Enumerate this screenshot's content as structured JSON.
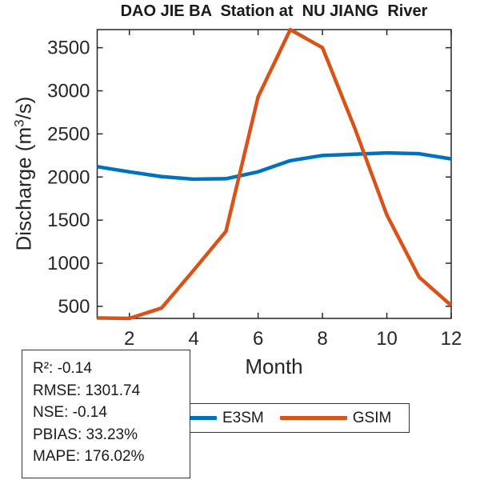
{
  "title": "DAO JIE BA  Station at  NU JIANG  River",
  "axes": {
    "xlabel": "Month",
    "ylabel_pre": "Discharge (m",
    "ylabel_sup": "3",
    "ylabel_post": "/s)",
    "tick_color": "#262626",
    "x_ticks": [
      2,
      4,
      6,
      8,
      10,
      12
    ],
    "y_ticks": [
      500,
      1000,
      1500,
      2000,
      2500,
      3000,
      3500
    ]
  },
  "legend": {
    "items": [
      {
        "label": "E3SM",
        "color": "#0072BD"
      },
      {
        "label": "GSIM",
        "color": "#D95319"
      }
    ]
  },
  "stats": {
    "lines": [
      "R²: -0.14",
      "RMSE: 1301.74",
      "NSE: -0.14",
      "PBIAS: 33.23%",
      "MAPE: 176.02%"
    ]
  },
  "chart_data": {
    "type": "line",
    "title": "DAO JIE BA  Station at  NU JIANG  River",
    "xlabel": "Month",
    "ylabel": "Discharge (m³/s)",
    "x": [
      1,
      2,
      3,
      4,
      5,
      6,
      7,
      8,
      9,
      10,
      11,
      12
    ],
    "series": [
      {
        "name": "E3SM",
        "color": "#0072BD",
        "values": [
          2120,
          2060,
          2005,
          1975,
          1980,
          2060,
          2190,
          2250,
          2265,
          2280,
          2270,
          2210
        ]
      },
      {
        "name": "GSIM",
        "color": "#D95319",
        "values": [
          365,
          360,
          480,
          920,
          1370,
          2930,
          3710,
          3500,
          2570,
          1560,
          840,
          510
        ]
      }
    ],
    "xlim": [
      1,
      12
    ],
    "ylim": [
      360,
      3710
    ],
    "grid": false,
    "legend_position": "below",
    "line_width": 4.5
  }
}
